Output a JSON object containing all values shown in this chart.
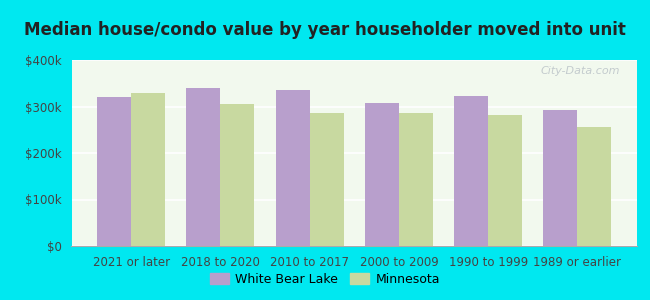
{
  "title": "Median house/condo value by year householder moved into unit",
  "categories": [
    "2021 or later",
    "2018 to 2020",
    "2010 to 2017",
    "2000 to 2009",
    "1990 to 1999",
    "1989 or earlier"
  ],
  "white_bear_lake": [
    320000,
    340000,
    335000,
    307000,
    322000,
    293000
  ],
  "minnesota": [
    330000,
    305000,
    287000,
    285000,
    282000,
    255000
  ],
  "bar_color_wbl": "#b89fcc",
  "bar_color_mn": "#c8d9a0",
  "background_outer": "#00e8f0",
  "background_inner": "#f2f9ee",
  "ylim": [
    0,
    400000
  ],
  "yticks": [
    0,
    100000,
    200000,
    300000,
    400000
  ],
  "ytick_labels": [
    "$0",
    "$100k",
    "$200k",
    "$300k",
    "$400k"
  ],
  "legend_label_wbl": "White Bear Lake",
  "legend_label_mn": "Minnesota",
  "title_fontsize": 12,
  "tick_fontsize": 8.5,
  "legend_fontsize": 9,
  "bar_width": 0.38,
  "watermark_text": "City-Data.com"
}
